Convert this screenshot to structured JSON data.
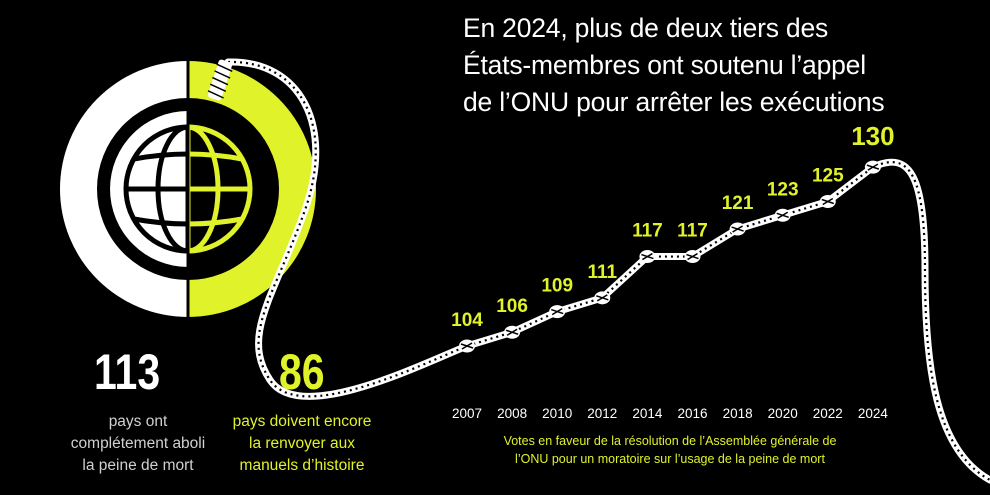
{
  "title_lines": [
    "En 2024, plus de deux tiers des",
    "États-membres ont soutenu l’appel",
    "de l’ONU pour arrêter les exécutions"
  ],
  "stats": {
    "abolished": {
      "value": "113",
      "lines": [
        "pays ont",
        "complétement aboli",
        "la peine de mort"
      ]
    },
    "remaining": {
      "value": "86",
      "lines": [
        "pays doivent encore",
        "la renvoyer aux",
        "manuels d’histoire"
      ]
    }
  },
  "caption_lines": [
    "Votes en faveur de la résolution de l’Assemblée générale de",
    "l’ONU pour un moratoire sur l’usage de la peine de mort"
  ],
  "colors": {
    "background": "#000000",
    "accent": "#e0f229",
    "white": "#ffffff",
    "grey": "#d0d0d0"
  },
  "chart_data": [
    {
      "type": "pie",
      "categories": [
        "pays ont complétement aboli la peine de mort",
        "pays doivent encore la renvoyer aux manuels d’histoire"
      ],
      "values": [
        113,
        86
      ],
      "colors": [
        "#ffffff",
        "#e0f229"
      ],
      "icon": "globe-icon"
    },
    {
      "type": "line",
      "x": [
        "2007",
        "2008",
        "2010",
        "2012",
        "2014",
        "2016",
        "2018",
        "2020",
        "2022",
        "2024"
      ],
      "y": [
        104,
        106,
        109,
        111,
        117,
        117,
        121,
        123,
        125,
        130
      ],
      "data_labels": [
        "104",
        "106",
        "109",
        "111",
        "117",
        "117",
        "121",
        "123",
        "125",
        "130"
      ],
      "line_style": "rope",
      "caption": "Votes en faveur de la résolution de l’Assemblée générale de l’ONU pour un moratoire sur l’usage de la peine de mort"
    }
  ]
}
